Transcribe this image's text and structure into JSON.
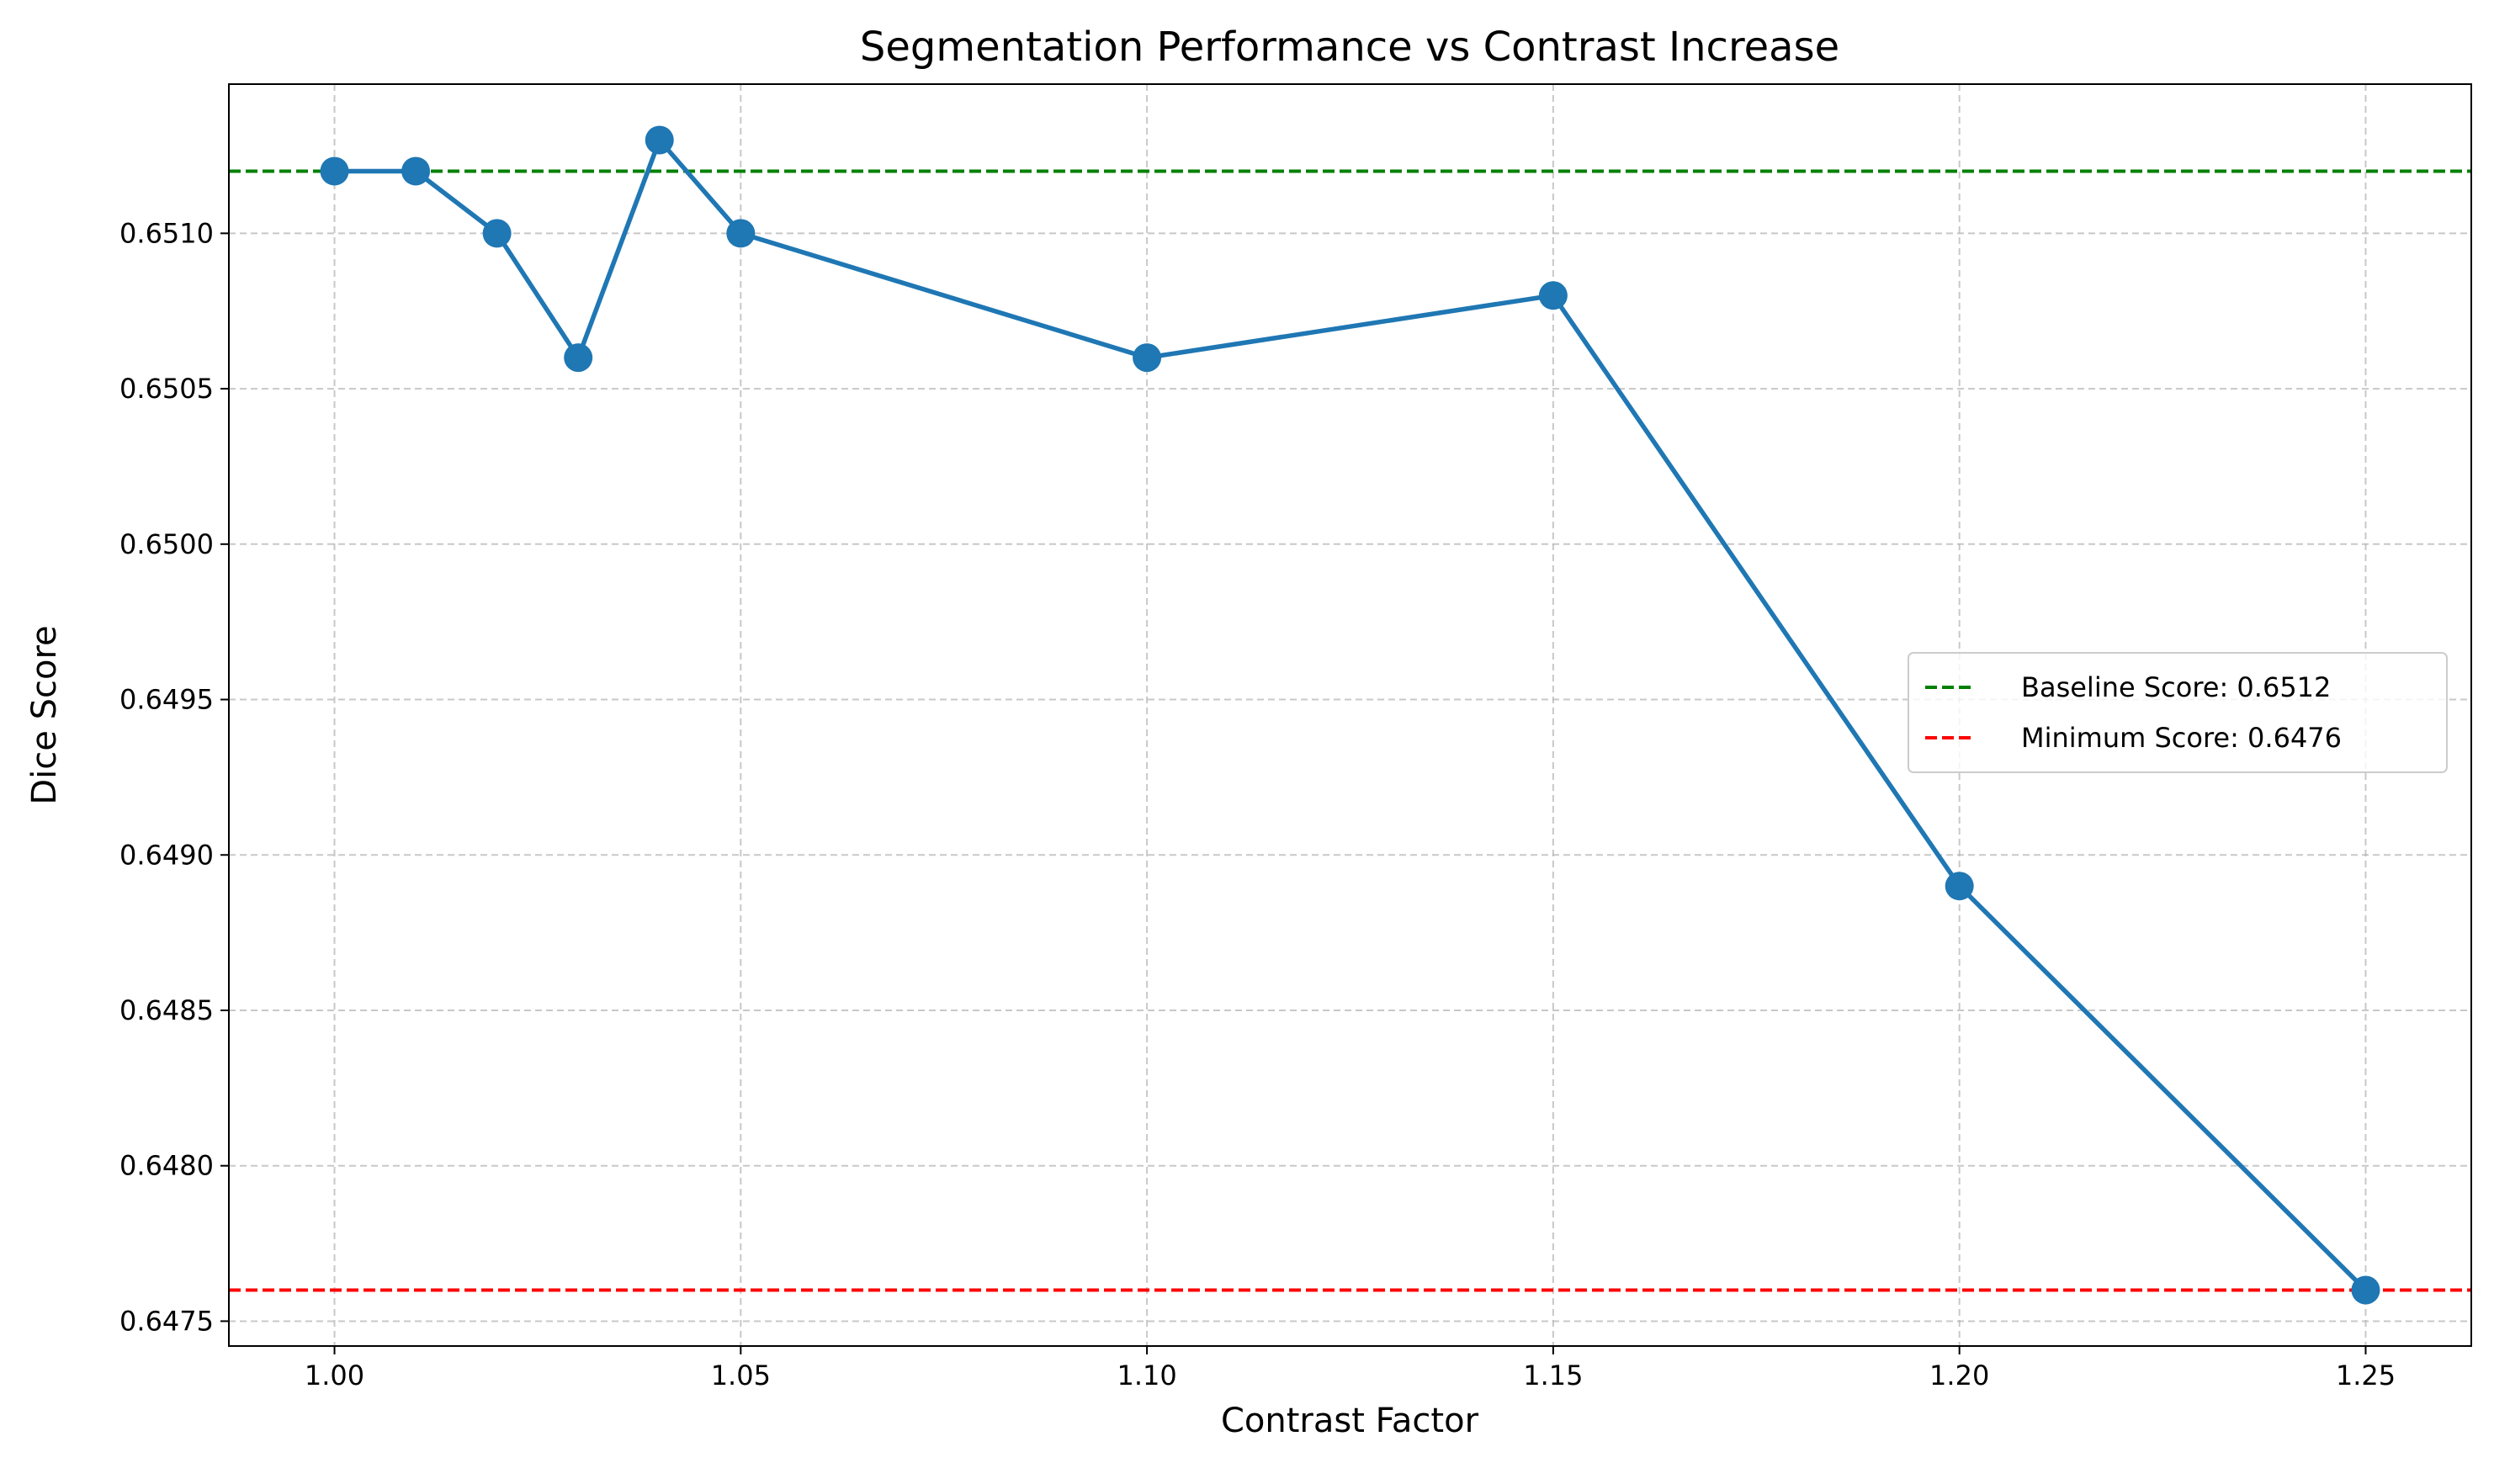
{
  "chart_data": {
    "type": "line",
    "title": "Segmentation Performance vs Contrast Increase",
    "xlabel": "Contrast Factor",
    "ylabel": "Dice Score",
    "xlim": [
      0.987,
      1.263
    ],
    "ylim": [
      0.64742,
      0.65148
    ],
    "grid": true,
    "legend_position": "center-right",
    "x_ticks": [
      1.0,
      1.05,
      1.1,
      1.15,
      1.2,
      1.25
    ],
    "x_tick_labels": [
      "1.00",
      "1.05",
      "1.10",
      "1.15",
      "1.20",
      "1.25"
    ],
    "y_ticks": [
      0.6475,
      0.648,
      0.6485,
      0.649,
      0.6495,
      0.65,
      0.6505,
      0.651
    ],
    "y_tick_labels": [
      "0.6475",
      "0.6480",
      "0.6485",
      "0.6490",
      "0.6495",
      "0.6500",
      "0.6505",
      "0.6510"
    ],
    "series": [
      {
        "color": "#1f77b4",
        "x": [
          1.0,
          1.01,
          1.02,
          1.03,
          1.04,
          1.05,
          1.1,
          1.15,
          1.2,
          1.25
        ],
        "y": [
          0.6512,
          0.6512,
          0.651,
          0.6506,
          0.6513,
          0.651,
          0.6506,
          0.6508,
          0.6489,
          0.6476
        ]
      }
    ],
    "reference_lines": [
      {
        "name": "Baseline Score: 0.6512",
        "y": 0.6512,
        "color": "#008000",
        "style": "dashed"
      },
      {
        "name": "Minimum Score: 0.6476",
        "y": 0.6476,
        "color": "#ff0000",
        "style": "dashed"
      }
    ]
  }
}
